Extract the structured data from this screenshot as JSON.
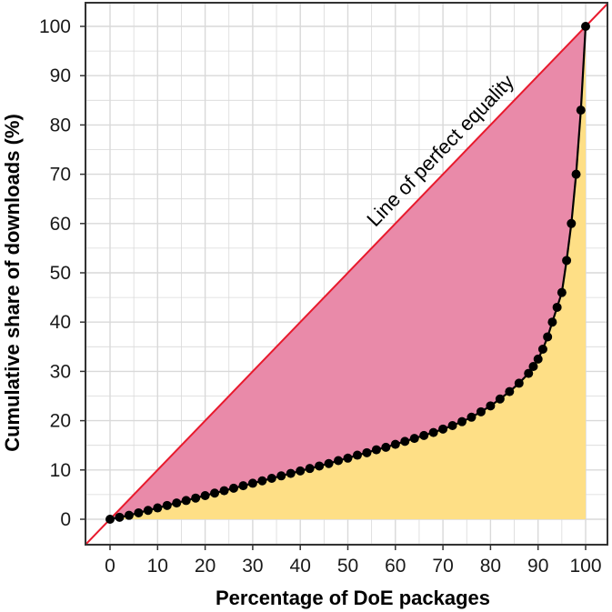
{
  "chart_data": {
    "type": "line",
    "title": "",
    "xlabel": "Percentage of DoE packages",
    "ylabel": "Cumulative share of downloads (%)",
    "xlim": [
      0,
      100
    ],
    "ylim": [
      0,
      100
    ],
    "xticks": [
      0,
      10,
      20,
      30,
      40,
      50,
      60,
      70,
      80,
      90,
      100
    ],
    "yticks": [
      0,
      10,
      20,
      30,
      40,
      50,
      60,
      70,
      80,
      90,
      100
    ],
    "grid": true,
    "annotation": "Line of perfect equality",
    "colors": {
      "equality_line": "#e8192c",
      "inequality_area": "#e98aa9",
      "curve_area": "#fedf86",
      "curve": "#000000",
      "grid": "#d9d9d9"
    },
    "series": [
      {
        "x": [
          0,
          2,
          4,
          6,
          8,
          10,
          12,
          14,
          16,
          18,
          20,
          22,
          24,
          26,
          28,
          30,
          32,
          34,
          36,
          38,
          40,
          42,
          44,
          46,
          48,
          50,
          52,
          54,
          56,
          58,
          60,
          62,
          64,
          66,
          68,
          70,
          72,
          74,
          76,
          78,
          80,
          82,
          84,
          86,
          88,
          89,
          90,
          91,
          92,
          93,
          94,
          95,
          96,
          97,
          98,
          99,
          100
        ],
        "y": [
          0,
          0.4,
          0.8,
          1.3,
          1.8,
          2.3,
          2.8,
          3.3,
          3.8,
          4.3,
          4.8,
          5.3,
          5.8,
          6.3,
          6.8,
          7.3,
          7.8,
          8.3,
          8.8,
          9.3,
          9.8,
          10.3,
          10.8,
          11.3,
          11.9,
          12.4,
          13.0,
          13.5,
          14.1,
          14.6,
          15.2,
          15.8,
          16.4,
          17.0,
          17.6,
          18.3,
          19.0,
          19.8,
          20.7,
          21.8,
          23.0,
          24.4,
          25.9,
          27.6,
          29.6,
          31.0,
          32.5,
          34.5,
          37.0,
          40.0,
          43.0,
          46.0,
          52.5,
          60.0,
          70.0,
          83.0,
          100.0
        ]
      }
    ]
  }
}
